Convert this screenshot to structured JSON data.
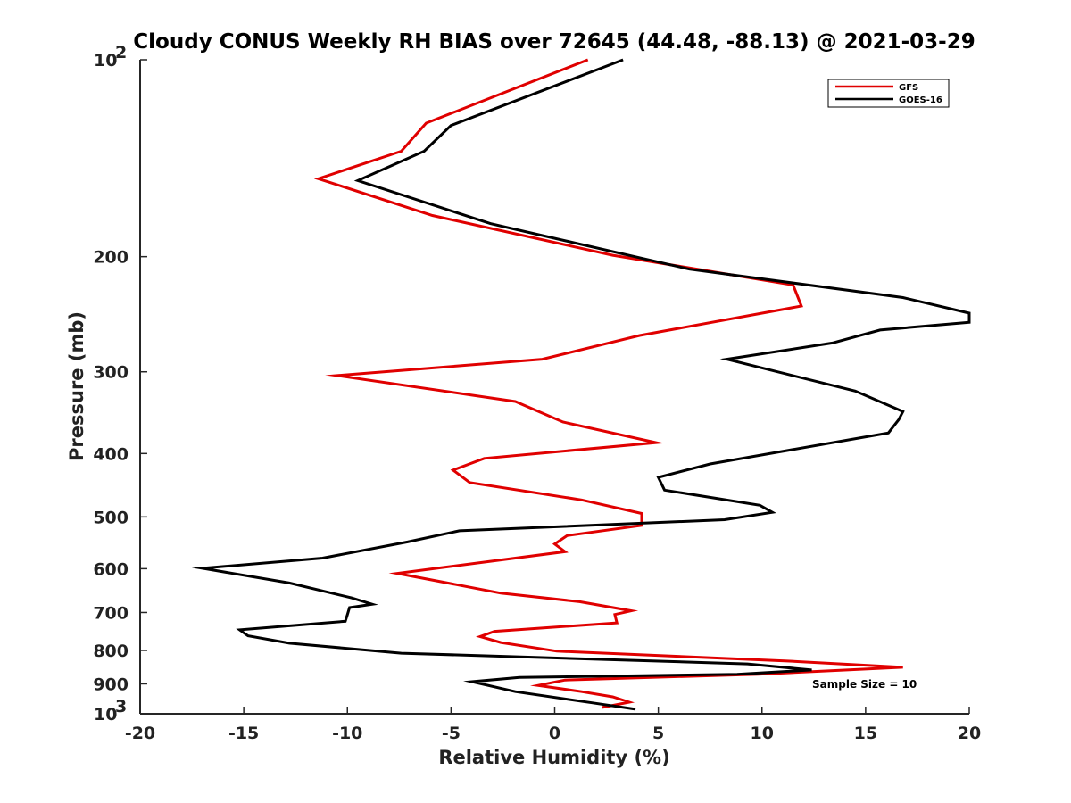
{
  "chart_data": {
    "type": "line",
    "title": "Cloudy CONUS Weekly RH BIAS over 72645 (44.48, -88.13) @ 2021-03-29",
    "xlabel": "Relative Humidity (%)",
    "ylabel": "Pressure (mb)",
    "xlim": [
      -20,
      20
    ],
    "ylim": [
      100,
      1000
    ],
    "y_scale": "log",
    "y_reversed": true,
    "x_ticks": [
      "-20",
      "-15",
      "-10",
      "-5",
      "0",
      "5",
      "10",
      "15",
      "20"
    ],
    "y_ticks": [
      {
        "value": 100,
        "base": "10",
        "exp": "2"
      },
      {
        "value": 200,
        "label": "200"
      },
      {
        "value": 300,
        "label": "300"
      },
      {
        "value": 400,
        "label": "400"
      },
      {
        "value": 500,
        "label": "500"
      },
      {
        "value": 600,
        "label": "600"
      },
      {
        "value": 700,
        "label": "700"
      },
      {
        "value": 800,
        "label": "800"
      },
      {
        "value": 900,
        "label": "900"
      },
      {
        "value": 1000,
        "base": "10",
        "exp": "3"
      }
    ],
    "legend_position": "top-right",
    "annotation": "Sample Size = 10",
    "series": [
      {
        "name": "GFS",
        "color": "#e00000",
        "x": [
          1.6,
          -6.2,
          -7.4,
          -11.4,
          -5.9,
          2.8,
          11.5,
          11.9,
          4.1,
          -0.6,
          -10.5,
          -1.9,
          0.4,
          4.9,
          -3.4,
          -4.9,
          -4.1,
          1.3,
          4.2,
          4.2,
          0.6,
          0.0,
          0.5,
          -7.6,
          -2.6,
          1.2,
          3.7,
          2.9,
          3.0,
          -2.9,
          -3.6,
          -2.6,
          0.1,
          11.1,
          16.8,
          9.8,
          0.5,
          -0.8,
          1.3,
          2.8,
          3.6,
          2.3
        ],
        "y": [
          100,
          125,
          138,
          152,
          173,
          199,
          221,
          238,
          264,
          287,
          304,
          333,
          358,
          385,
          407,
          424,
          443,
          471,
          494,
          515,
          534,
          550,
          565,
          610,
          654,
          674,
          696,
          705,
          726,
          748,
          762,
          778,
          802,
          830,
          849,
          870,
          888,
          905,
          925,
          942,
          960,
          978
        ]
      },
      {
        "name": "GOES-16",
        "color": "#000000",
        "x": [
          3.3,
          -5.0,
          -6.3,
          -9.5,
          -3.1,
          6.5,
          16.8,
          20.0,
          20.0,
          15.7,
          13.4,
          8.3,
          14.5,
          16.8,
          16.6,
          16.1,
          7.5,
          5.0,
          5.3,
          9.9,
          10.5,
          8.2,
          -4.6,
          -7.1,
          -11.2,
          -17.0,
          -12.8,
          -9.8,
          -8.8,
          -9.9,
          -10.0,
          -10.1,
          -15.2,
          -14.8,
          -12.8,
          -7.4,
          9.3,
          12.4,
          8.8,
          -1.7,
          -4.0,
          -1.9,
          1.8,
          3.9
        ],
        "y": [
          100,
          126,
          138,
          153,
          178,
          209,
          231,
          244,
          252,
          259,
          271,
          287,
          321,
          345,
          355,
          372,
          415,
          435,
          455,
          480,
          492,
          505,
          525,
          546,
          578,
          599,
          631,
          665,
          680,
          688,
          705,
          722,
          744,
          760,
          780,
          808,
          839,
          857,
          870,
          880,
          893,
          925,
          962,
          984
        ]
      }
    ]
  }
}
